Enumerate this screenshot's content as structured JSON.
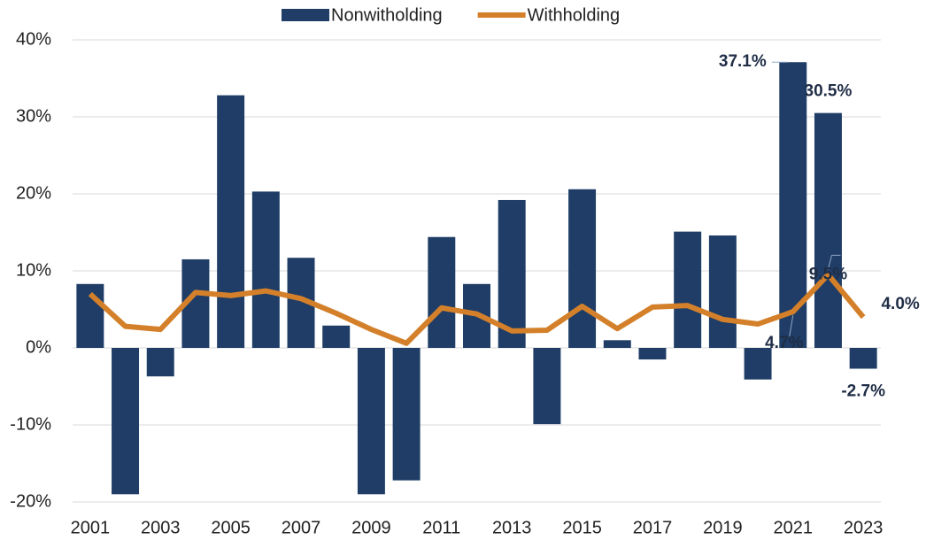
{
  "chart_data": {
    "type": "bar-line",
    "categories": [
      "2001",
      null,
      "2003",
      null,
      "2005",
      null,
      "2007",
      null,
      "2009",
      null,
      "2011",
      null,
      "2013",
      null,
      "2015",
      null,
      "2017",
      null,
      "2019",
      null,
      "2021",
      null,
      "2023"
    ],
    "series": [
      {
        "name": "Nonwitholding",
        "type": "bar",
        "color": "#1f3d66",
        "values": [
          8.3,
          -19.0,
          -3.7,
          11.5,
          32.8,
          20.3,
          11.7,
          2.9,
          -19.0,
          -17.2,
          14.4,
          8.3,
          19.2,
          -9.9,
          20.6,
          1.0,
          -1.5,
          15.1,
          14.6,
          -4.1,
          37.1,
          30.5,
          -2.7
        ],
        "value_labels": [
          null,
          null,
          null,
          null,
          null,
          null,
          null,
          null,
          null,
          null,
          null,
          null,
          null,
          null,
          null,
          null,
          null,
          null,
          null,
          null,
          "37.1%",
          "30.5%",
          "-2.7%"
        ]
      },
      {
        "name": "Withholding",
        "type": "line",
        "color": "#d4802a",
        "values": [
          7.0,
          2.8,
          2.4,
          7.2,
          6.8,
          7.4,
          6.4,
          4.5,
          2.4,
          0.6,
          5.2,
          4.4,
          2.2,
          2.3,
          5.4,
          2.5,
          5.3,
          5.5,
          3.7,
          3.1,
          4.7,
          9.5,
          4.0
        ],
        "value_labels": [
          null,
          null,
          null,
          null,
          null,
          null,
          null,
          null,
          null,
          null,
          null,
          null,
          null,
          null,
          null,
          null,
          null,
          null,
          null,
          null,
          "4.7%",
          "9.5%",
          "4.0%"
        ]
      }
    ],
    "ylim": [
      -20,
      40
    ],
    "yticks": [
      {
        "value": -20,
        "label": "-20%"
      },
      {
        "value": -10,
        "label": "-10%"
      },
      {
        "value": 0,
        "label": "0%"
      },
      {
        "value": 10,
        "label": "10%"
      },
      {
        "value": 20,
        "label": "20%"
      },
      {
        "value": 30,
        "label": "30%"
      },
      {
        "value": 40,
        "label": "40%"
      }
    ],
    "grid": true,
    "legend": "top"
  }
}
